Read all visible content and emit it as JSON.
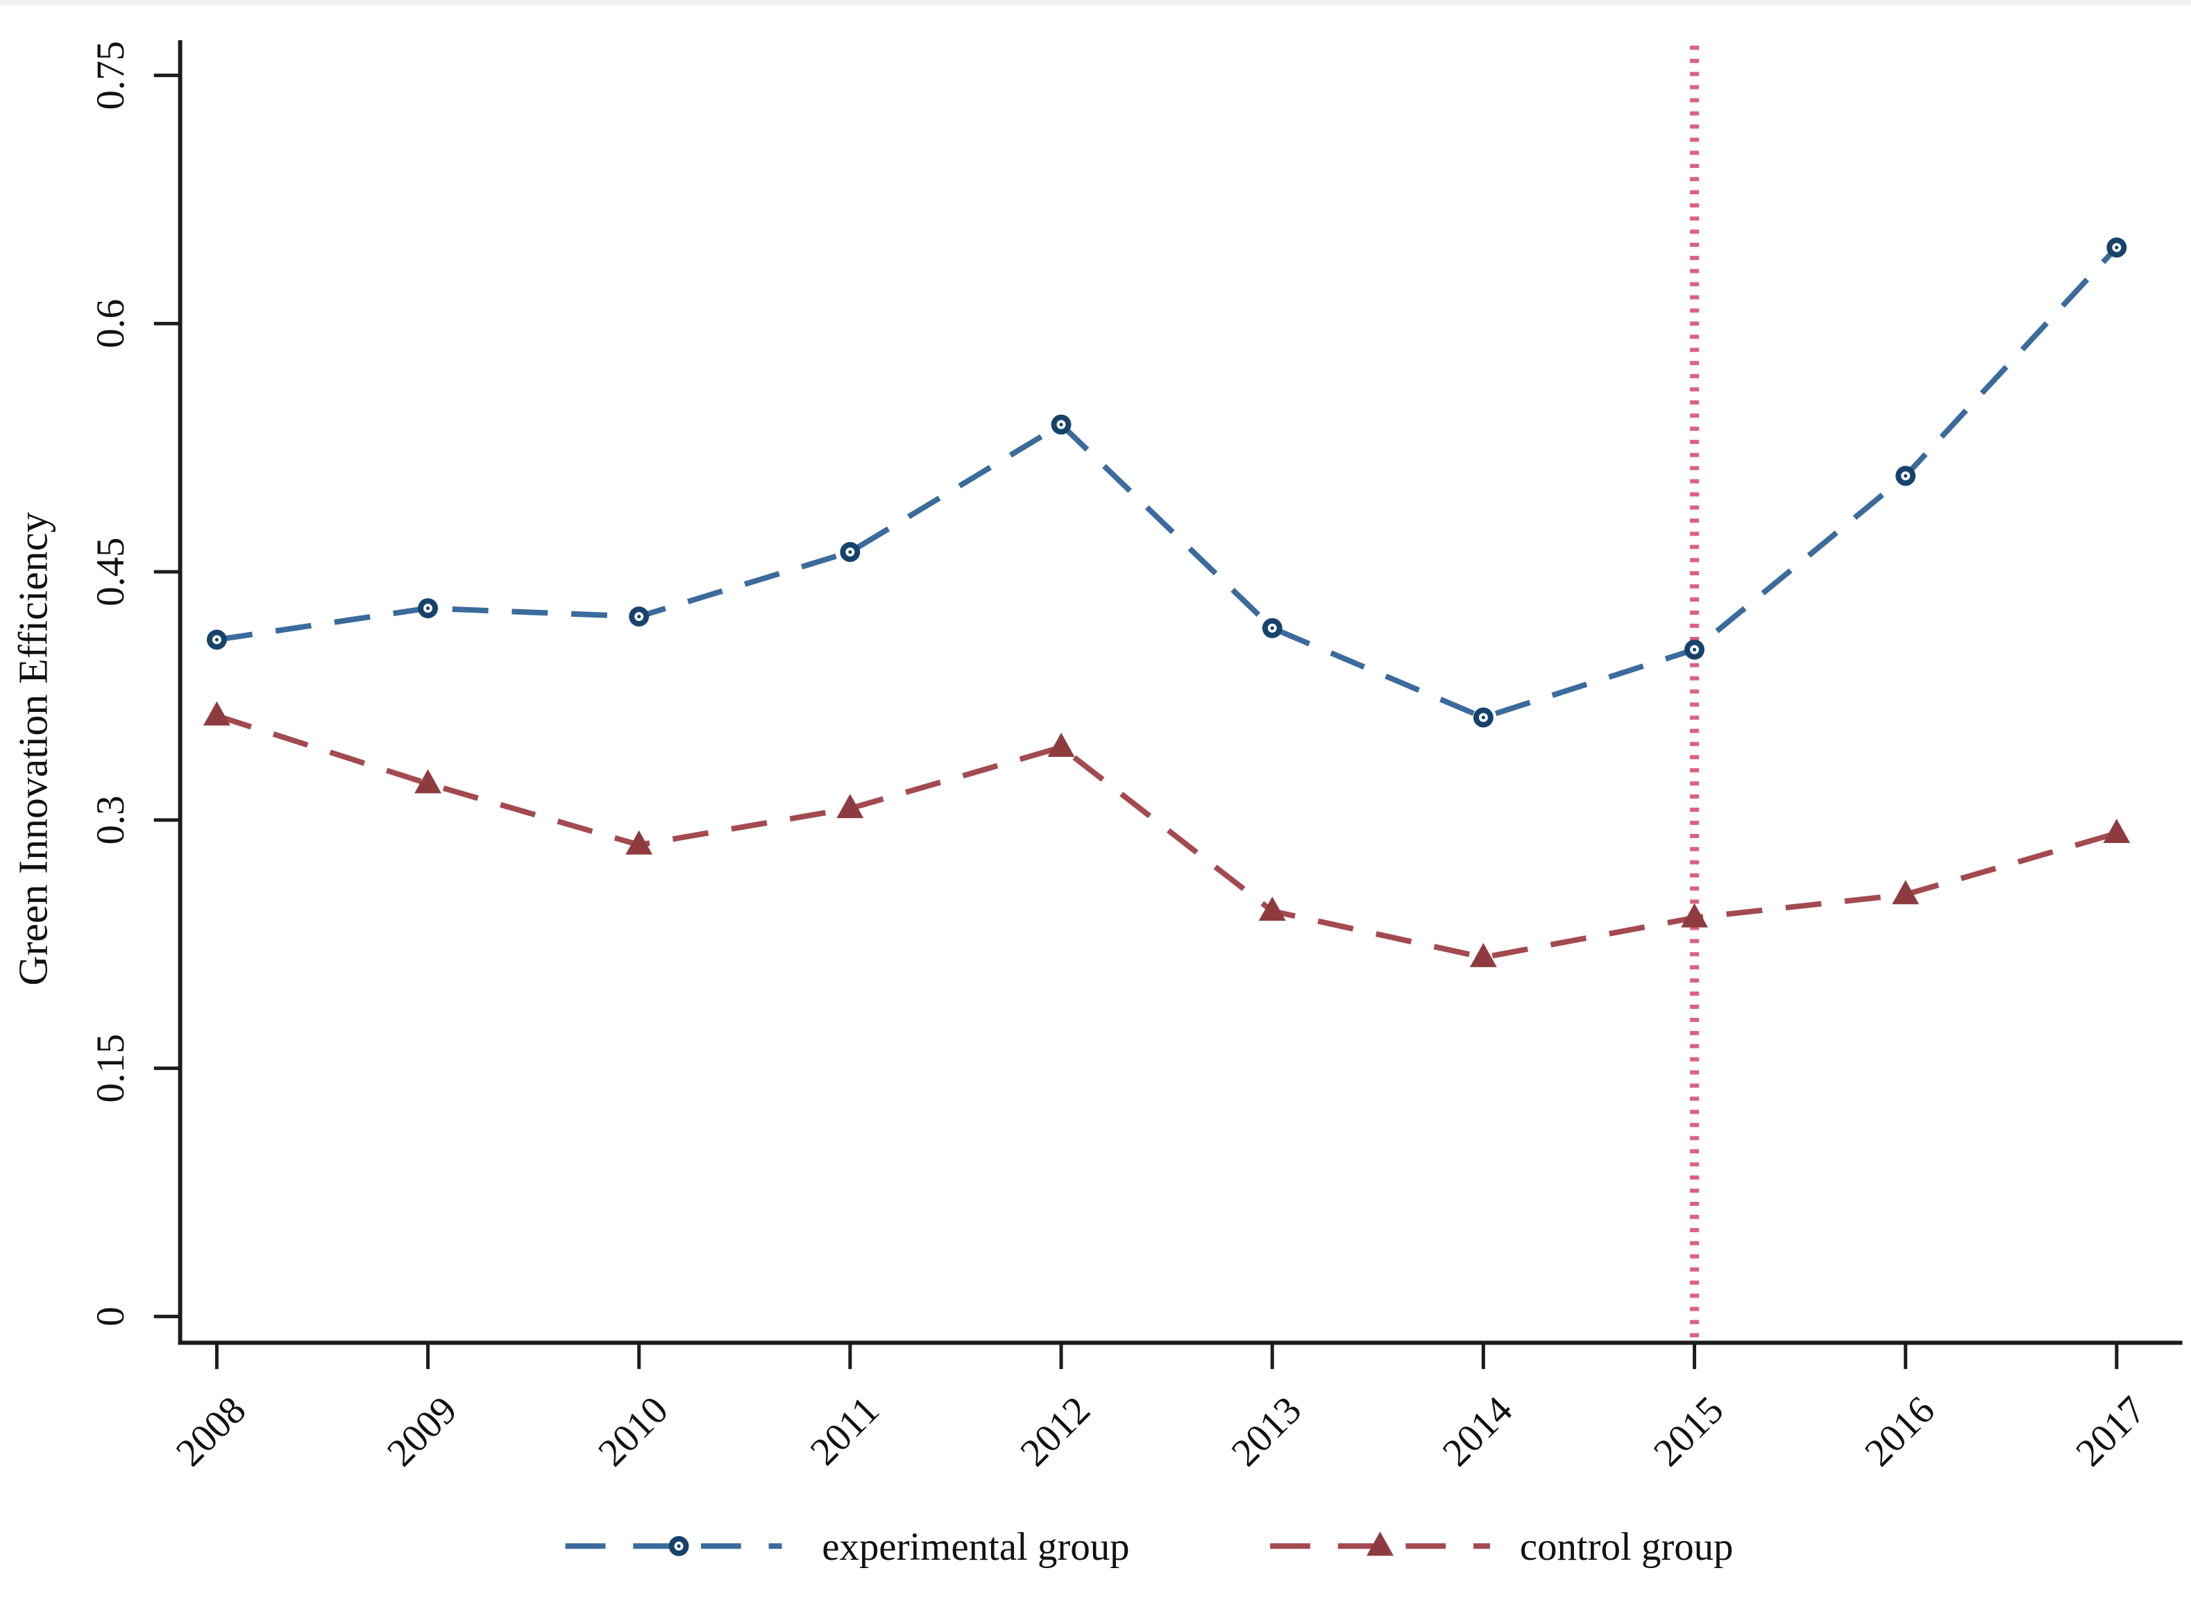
{
  "chart_data": {
    "type": "line",
    "title": "",
    "xlabel": "",
    "ylabel": "Green Innovation Efficiency",
    "x": [
      2008,
      2009,
      2010,
      2011,
      2012,
      2013,
      2014,
      2015,
      2016,
      2017
    ],
    "x_tick_labels": [
      "2008",
      "2009",
      "2010",
      "2011",
      "2012",
      "2013",
      "2014",
      "2015",
      "2016",
      "2017"
    ],
    "y_ticks": [
      0,
      0.15,
      0.3,
      0.45,
      0.6,
      0.75
    ],
    "y_tick_labels": [
      "0",
      "0.15",
      "0.3",
      "0.45",
      "0.6",
      "0.75"
    ],
    "ylim": [
      0,
      0.78
    ],
    "grid": "off",
    "legend_position": "bottom-center",
    "series": [
      {
        "name": "experimental group",
        "marker": "circle",
        "line_style": "long-dash",
        "marker_color": "#17426b",
        "line_color": "#3a6b9c",
        "values": [
          0.409,
          0.428,
          0.423,
          0.462,
          0.539,
          0.416,
          0.362,
          0.403,
          0.508,
          0.646
        ]
      },
      {
        "name": "control group",
        "marker": "triangle",
        "line_style": "long-dash",
        "marker_color": "#8e3b3f",
        "line_color": "#a34a50",
        "values": [
          0.363,
          0.322,
          0.285,
          0.307,
          0.344,
          0.245,
          0.217,
          0.241,
          0.255,
          0.292
        ]
      }
    ],
    "reference_line": {
      "orientation": "vertical",
      "x": 2015,
      "style": "dotted",
      "color": "#e0607e"
    }
  },
  "axes": {
    "y_title": "Green Innovation Efficiency",
    "axis_color": "#1c1c1c",
    "label_color": "#111111"
  },
  "legend": {
    "items": [
      {
        "label": "experimental group",
        "marker": "circle-icon"
      },
      {
        "label": "control group",
        "marker": "triangle-icon"
      }
    ]
  }
}
